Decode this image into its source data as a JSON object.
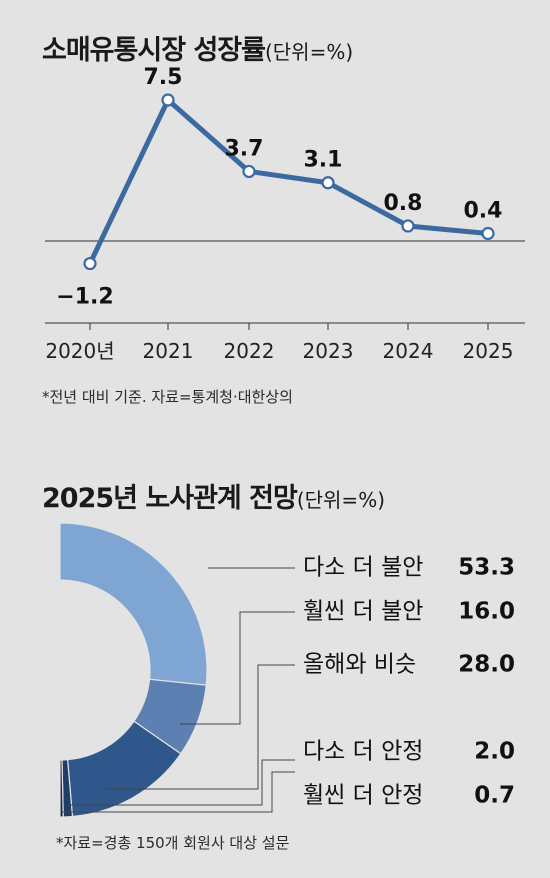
{
  "line_chart": {
    "title": "소매유통시장 성장률",
    "unit": "(단위=%)",
    "note": "*전년 대비 기준. 자료=통계청·대한상의"
  },
  "donut_chart": {
    "title": "2025년 노사관계 전망",
    "unit": "(단위=%)",
    "note": "*자료=경총 150개 회원사 대상 설문"
  },
  "colors": {
    "line": "#3c6aa0",
    "background": "#e3e3e3",
    "slices": [
      "#7fa6d3",
      "#5d80b2",
      "#2f578c",
      "#1f3d66",
      "#142a48"
    ]
  },
  "chart_data": [
    {
      "type": "line",
      "title": "소매유통시장 성장률",
      "categories": [
        "2020년",
        "2021",
        "2022",
        "2023",
        "2024",
        "2025"
      ],
      "values": [
        -1.2,
        7.5,
        3.7,
        3.1,
        0.8,
        0.4
      ],
      "data_labels": [
        "−1.2",
        "7.5",
        "3.7",
        "3.1",
        "0.8",
        "0.4"
      ],
      "zero_line": true
    },
    {
      "type": "pie",
      "subtype": "donut-half",
      "title": "2025년 노사관계 전망",
      "categories": [
        "다소 더 불안",
        "훨씬 더 불안",
        "올해와 비슷",
        "다소 더 안정",
        "훨씬 더 안정"
      ],
      "values": [
        53.3,
        16.0,
        28.0,
        2.0,
        0.7
      ],
      "value_labels": [
        "53.3",
        "16.0",
        "28.0",
        "2.0",
        "0.7"
      ]
    }
  ]
}
